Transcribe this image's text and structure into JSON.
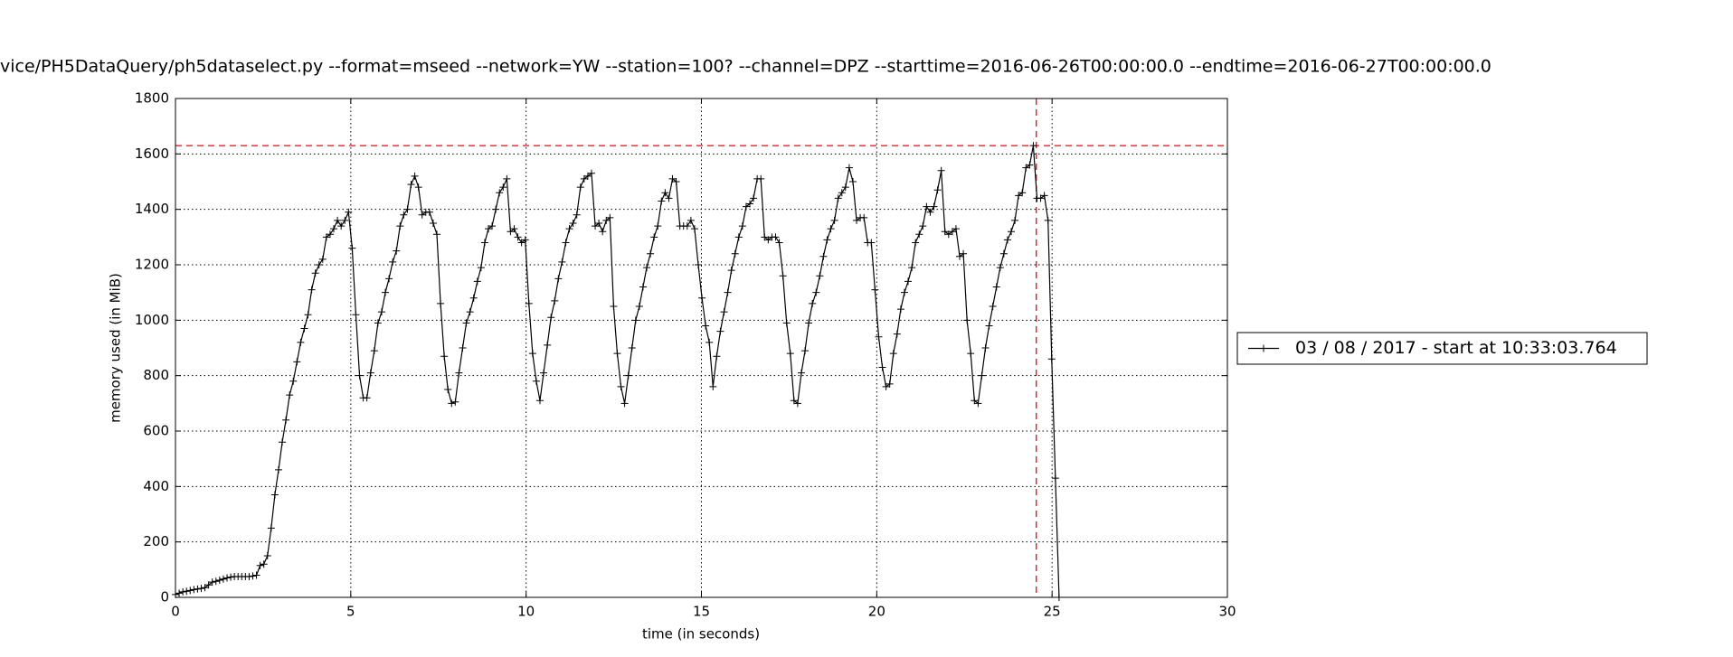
{
  "chart_data": {
    "type": "line",
    "title": "vice/PH5DataQuery/ph5dataselect.py --format=mseed --network=YW --station=100? --channel=DPZ --starttime=2016-06-26T00:00:00.0 --endtime=2016-06-27T00:00:00.0",
    "x_label": "time (in seconds)",
    "y_label": "memory used (in MiB)",
    "xlim": [
      0,
      30
    ],
    "ylim": [
      0,
      1800
    ],
    "xticks": [
      0,
      5,
      10,
      15,
      20,
      25,
      30
    ],
    "yticks": [
      0,
      200,
      400,
      600,
      800,
      1000,
      1200,
      1400,
      1600,
      1800
    ],
    "grid": true,
    "legend": "right",
    "hlines": [
      {
        "value": 1630,
        "color": "#ff0000"
      }
    ],
    "vlines": [
      {
        "value": 24.55,
        "color": "#ff0000"
      }
    ],
    "x": [
      0,
      0.105,
      0.21,
      0.315,
      0.42,
      0.525,
      0.63,
      0.735,
      0.84,
      0.945,
      1.05,
      1.155,
      1.26,
      1.365,
      1.47,
      1.575,
      1.68,
      1.785,
      1.89,
      1.995,
      2.1,
      2.205,
      2.31,
      2.415,
      2.52,
      2.625,
      2.73,
      2.835,
      2.94,
      3.045,
      3.15,
      3.255,
      3.36,
      3.465,
      3.57,
      3.675,
      3.78,
      3.885,
      3.99,
      4.095,
      4.2,
      4.305,
      4.41,
      4.515,
      4.62,
      4.725,
      4.83,
      4.935,
      5.04,
      5.145,
      5.25,
      5.355,
      5.46,
      5.565,
      5.67,
      5.775,
      5.88,
      5.985,
      6.09,
      6.195,
      6.3,
      6.405,
      6.51,
      6.615,
      6.72,
      6.825,
      6.93,
      7.035,
      7.14,
      7.245,
      7.35,
      7.455,
      7.56,
      7.665,
      7.77,
      7.875,
      7.98,
      8.085,
      8.19,
      8.295,
      8.4,
      8.505,
      8.61,
      8.715,
      8.82,
      8.925,
      9.03,
      9.135,
      9.24,
      9.345,
      9.45,
      9.555,
      9.66,
      9.765,
      9.87,
      9.975,
      10.08,
      10.185,
      10.29,
      10.395,
      10.5,
      10.605,
      10.71,
      10.815,
      10.92,
      11.025,
      11.13,
      11.235,
      11.34,
      11.445,
      11.55,
      11.655,
      11.76,
      11.865,
      11.97,
      12.075,
      12.18,
      12.285,
      12.39,
      12.495,
      12.6,
      12.705,
      12.81,
      12.915,
      13.02,
      13.125,
      13.23,
      13.335,
      13.44,
      13.545,
      13.65,
      13.755,
      13.86,
      13.965,
      14.07,
      14.175,
      14.28,
      14.385,
      14.49,
      14.595,
      14.7,
      14.805,
      14.91,
      15.015,
      15.12,
      15.225,
      15.33,
      15.435,
      15.54,
      15.645,
      15.75,
      15.855,
      15.96,
      16.065,
      16.17,
      16.275,
      16.38,
      16.485,
      16.59,
      16.695,
      16.8,
      16.905,
      17.01,
      17.115,
      17.22,
      17.325,
      17.43,
      17.535,
      17.64,
      17.745,
      17.85,
      17.955,
      18.06,
      18.165,
      18.27,
      18.375,
      18.48,
      18.585,
      18.69,
      18.795,
      18.9,
      19.005,
      19.11,
      19.215,
      19.32,
      19.425,
      19.53,
      19.635,
      19.74,
      19.845,
      19.95,
      20.055,
      20.16,
      20.265,
      20.37,
      20.475,
      20.58,
      20.685,
      20.79,
      20.895,
      21,
      21.105,
      21.21,
      21.315,
      21.42,
      21.525,
      21.63,
      21.735,
      21.84,
      21.945,
      22.05,
      22.155,
      22.26,
      22.365,
      22.47,
      22.575,
      22.68,
      22.785,
      22.89,
      22.995,
      23.1,
      23.205,
      23.31,
      23.415,
      23.52,
      23.625,
      23.73,
      23.835,
      23.94,
      24.045,
      24.15,
      24.255,
      24.36,
      24.465,
      24.57,
      24.675,
      24.78,
      24.885,
      24.99,
      25.095,
      25.2
    ],
    "series": [
      {
        "name": "03 / 08 / 2017 - start at 10:33:03.764",
        "color": "#000000",
        "values": [
          10,
          15,
          20,
          22,
          25,
          28,
          30,
          32,
          35,
          45,
          55,
          58,
          62,
          66,
          70,
          73,
          75,
          75,
          75,
          75,
          75,
          77,
          80,
          115,
          120,
          150,
          250,
          370,
          460,
          560,
          640,
          730,
          780,
          850,
          920,
          970,
          1020,
          1110,
          1170,
          1200,
          1220,
          1300,
          1310,
          1330,
          1360,
          1340,
          1360,
          1390,
          1260,
          1020,
          800,
          720,
          720,
          810,
          890,
          990,
          1030,
          1100,
          1150,
          1210,
          1250,
          1340,
          1380,
          1400,
          1490,
          1520,
          1480,
          1380,
          1390,
          1390,
          1350,
          1310,
          1060,
          870,
          750,
          700,
          705,
          810,
          900,
          990,
          1030,
          1080,
          1140,
          1190,
          1280,
          1330,
          1340,
          1400,
          1460,
          1480,
          1510,
          1320,
          1330,
          1300,
          1280,
          1290,
          1060,
          880,
          780,
          710,
          810,
          910,
          1010,
          1070,
          1150,
          1210,
          1280,
          1330,
          1350,
          1380,
          1480,
          1510,
          1520,
          1530,
          1340,
          1350,
          1320,
          1360,
          1370,
          1050,
          880,
          760,
          700,
          800,
          900,
          1000,
          1050,
          1120,
          1190,
          1240,
          1300,
          1340,
          1430,
          1460,
          1440,
          1510,
          1500,
          1340,
          1340,
          1340,
          1360,
          1330,
          1200,
          1080,
          980,
          920,
          760,
          870,
          960,
          1030,
          1100,
          1180,
          1240,
          1300,
          1340,
          1410,
          1420,
          1440,
          1510,
          1510,
          1300,
          1290,
          1300,
          1300,
          1280,
          1160,
          990,
          880,
          710,
          700,
          810,
          890,
          990,
          1060,
          1100,
          1160,
          1230,
          1290,
          1330,
          1360,
          1440,
          1460,
          1480,
          1550,
          1500,
          1360,
          1370,
          1370,
          1280,
          1280,
          1110,
          940,
          830,
          760,
          770,
          880,
          950,
          1040,
          1100,
          1140,
          1190,
          1280,
          1310,
          1340,
          1410,
          1390,
          1410,
          1470,
          1540,
          1320,
          1310,
          1320,
          1330,
          1230,
          1240,
          1000,
          880,
          710,
          700,
          800,
          900,
          980,
          1050,
          1120,
          1190,
          1240,
          1290,
          1320,
          1360,
          1450,
          1460,
          1550,
          1560,
          1630,
          1440,
          1440,
          1450,
          1360,
          860,
          430,
          0
        ]
      }
    ]
  }
}
